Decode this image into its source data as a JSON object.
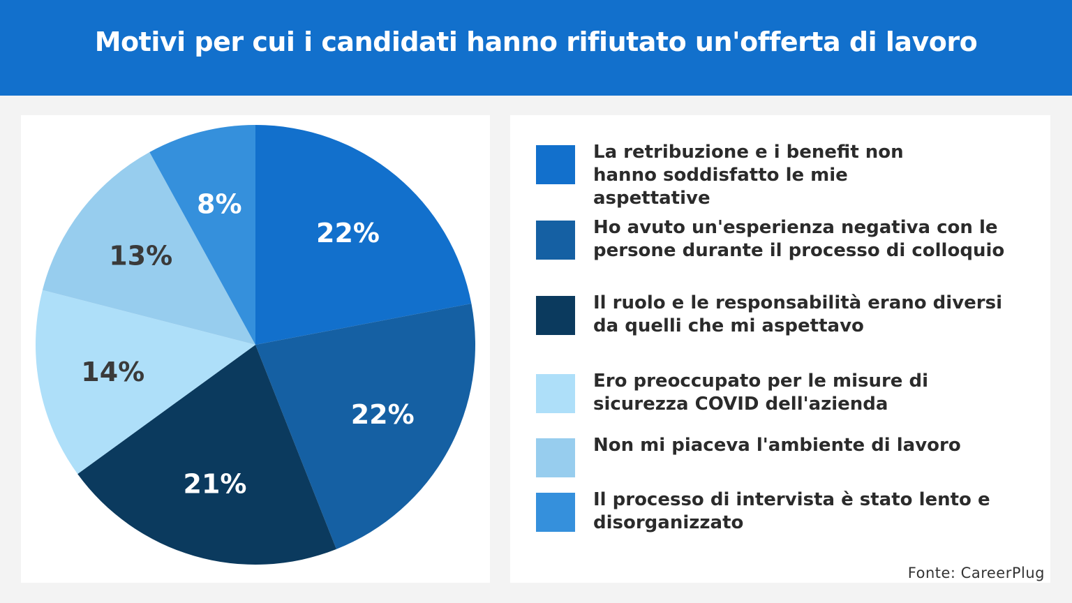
{
  "title": "Motivi per cui i candidati hanno rifiutato un'offerta di lavoro",
  "source": "Fonte: CareerPlug",
  "chart_data": {
    "type": "pie",
    "title": "Motivi per cui i candidati hanno rifiutato un'offerta di lavoro",
    "start": "top",
    "direction": "clockwise",
    "legend_position": "right",
    "slices": [
      {
        "label": "La retribuzione e i benefit non hanno soddisfatto le mie aspettative",
        "value": 22,
        "display": "22%",
        "color": "#1270cc",
        "text_color": "#ffffff"
      },
      {
        "label": "Ho avuto un'esperienza negativa con le persone durante il processo di colloquio",
        "value": 22,
        "display": "22%",
        "color": "#1560a3",
        "text_color": "#ffffff"
      },
      {
        "label": "Il ruolo e le responsabilità erano diversi da quelli che mi aspettavo",
        "value": 21,
        "display": "21%",
        "color": "#0b3a5e",
        "text_color": "#ffffff"
      },
      {
        "label": "Ero preoccupato per le misure di sicurezza COVID dell'azienda",
        "value": 14,
        "display": "14%",
        "color": "#aedff9",
        "text_color": "#3a3a3a"
      },
      {
        "label": "Non mi piaceva l'ambiente di lavoro",
        "value": 13,
        "display": "13%",
        "color": "#97cdee",
        "text_color": "#3a3a3a"
      },
      {
        "label": "Il processo di intervista è stato lento e disorganizzato",
        "value": 8,
        "display": "8%",
        "color": "#3590dc",
        "text_color": "#ffffff"
      }
    ]
  }
}
